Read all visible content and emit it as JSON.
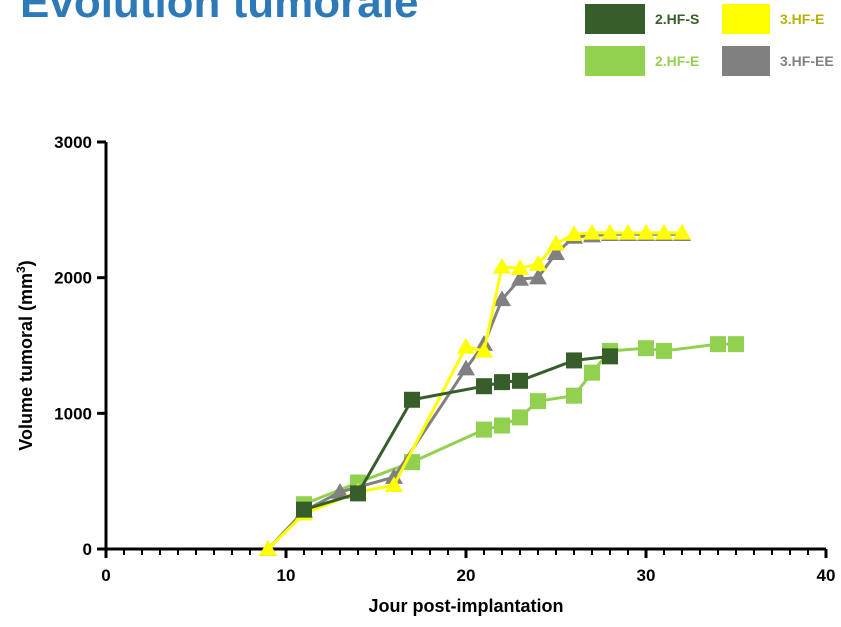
{
  "title": "Evolution tumorale",
  "colors": {
    "title": "#2E7AB8",
    "series_2HFS": "#375E2A",
    "series_3HFE": "#FFFF00",
    "series_2HFE": "#92D050",
    "series_3HFEE": "#808080"
  },
  "chart_data": {
    "type": "line",
    "xlabel": "Jour post-implantation",
    "ylabel": "Volume tumoral (mm3)",
    "xlim": [
      0,
      40
    ],
    "ylim": [
      0,
      3000
    ],
    "x_ticks": [
      "0",
      "10",
      "20",
      "30",
      "40"
    ],
    "y_ticks": [
      "0",
      "1000",
      "2000",
      "3000"
    ],
    "legend": [
      "2.HF-S",
      "3.HF-E",
      "2.HF-E",
      "3.HF-EE"
    ],
    "series": [
      {
        "name": "2.HF-E",
        "color": "#92D050",
        "marker": "square",
        "points": [
          [
            11,
            330
          ],
          [
            14,
            490
          ],
          [
            17,
            640
          ],
          [
            21,
            880
          ],
          [
            22,
            910
          ],
          [
            23,
            970
          ],
          [
            24,
            1090
          ],
          [
            26,
            1130
          ],
          [
            27,
            1300
          ],
          [
            28,
            1460
          ],
          [
            30,
            1480
          ],
          [
            31,
            1460
          ],
          [
            34,
            1510
          ],
          [
            35,
            1510
          ]
        ]
      },
      {
        "name": "3.HF-EE",
        "color": "#808080",
        "marker": "triangle",
        "points": [
          [
            9,
            0
          ],
          [
            11,
            280
          ],
          [
            13,
            420
          ],
          [
            16,
            530
          ],
          [
            20,
            1330
          ],
          [
            21,
            1510
          ],
          [
            22,
            1840
          ],
          [
            23,
            1990
          ],
          [
            24,
            2000
          ],
          [
            25,
            2180
          ],
          [
            26,
            2300
          ],
          [
            27,
            2310
          ],
          [
            28,
            2320
          ],
          [
            29,
            2320
          ],
          [
            30,
            2320
          ],
          [
            31,
            2320
          ],
          [
            32,
            2320
          ]
        ]
      },
      {
        "name": "3.HF-E",
        "color": "#FFFF00",
        "marker": "triangle",
        "points": [
          [
            9,
            0
          ],
          [
            11,
            260
          ],
          [
            14,
            420
          ],
          [
            16,
            470
          ],
          [
            20,
            1490
          ],
          [
            21,
            1460
          ],
          [
            22,
            2080
          ],
          [
            23,
            2070
          ],
          [
            24,
            2100
          ],
          [
            25,
            2250
          ],
          [
            26,
            2320
          ],
          [
            27,
            2330
          ],
          [
            28,
            2330
          ],
          [
            29,
            2330
          ],
          [
            30,
            2330
          ],
          [
            31,
            2330
          ],
          [
            32,
            2330
          ]
        ]
      },
      {
        "name": "2.HF-S",
        "color": "#375E2A",
        "marker": "square",
        "points": [
          [
            11,
            290
          ],
          [
            14,
            410
          ],
          [
            17,
            1100
          ],
          [
            21,
            1200
          ],
          [
            22,
            1230
          ],
          [
            23,
            1240
          ],
          [
            26,
            1390
          ],
          [
            28,
            1420
          ]
        ]
      }
    ]
  }
}
